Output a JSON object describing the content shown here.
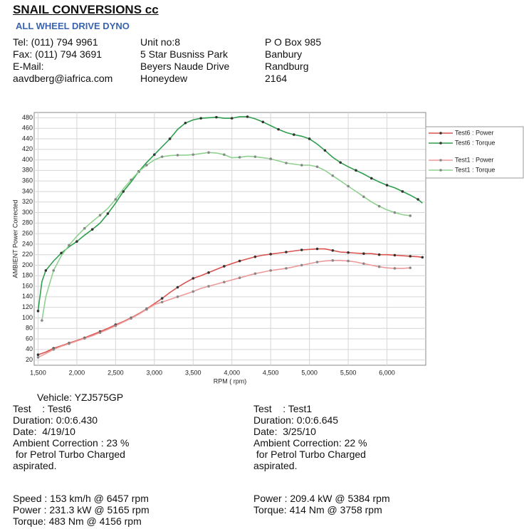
{
  "header": {
    "title": "SNAIL CONVERSIONS cc",
    "subtitle": "ALL WHEEL DRIVE DYNO",
    "contact": [
      [
        "Tel: (011) 794 9961",
        "Fax: (011) 794 3691",
        "E-Mail:",
        "aavdberg@iafrica.com"
      ],
      [
        "Unit no:8",
        "5 Star Busniss Park",
        "Beyers Naude Drive",
        "Honeydew"
      ],
      [
        "P O Box 985",
        "Banbury",
        "Randburg",
        "2164"
      ]
    ]
  },
  "chart_data": {
    "type": "line",
    "xlabel": "RPM ( rpm)",
    "ylabel": "AMBIENT Power Corrected",
    "xlim": [
      1450,
      6500
    ],
    "ylim": [
      10,
      490
    ],
    "grid": true,
    "xticks": [
      {
        "value": 1500,
        "label": "1,500"
      },
      {
        "value": 2000,
        "label": "2,000"
      },
      {
        "value": 2500,
        "label": "2,500"
      },
      {
        "value": 3000,
        "label": "3,000"
      },
      {
        "value": 3500,
        "label": "3,500"
      },
      {
        "value": 4000,
        "label": "4,000"
      },
      {
        "value": 4500,
        "label": "4,500"
      },
      {
        "value": 5000,
        "label": "5,000"
      },
      {
        "value": 5500,
        "label": "5,500"
      },
      {
        "value": 6000,
        "label": "6,000"
      }
    ],
    "yticks": [
      20,
      40,
      60,
      80,
      100,
      120,
      140,
      160,
      180,
      200,
      220,
      240,
      260,
      280,
      300,
      320,
      340,
      360,
      380,
      400,
      420,
      440,
      460,
      480
    ],
    "legend": "right",
    "series": [
      {
        "name": "Test6 : Power",
        "color": "#d9534f",
        "x": [
          1500,
          1600,
          1700,
          1800,
          1900,
          2000,
          2100,
          2200,
          2300,
          2400,
          2500,
          2600,
          2700,
          2800,
          2900,
          3000,
          3100,
          3200,
          3300,
          3400,
          3500,
          3600,
          3700,
          3800,
          3900,
          4000,
          4100,
          4200,
          4300,
          4400,
          4500,
          4600,
          4700,
          4800,
          4900,
          5000,
          5100,
          5200,
          5300,
          5400,
          5500,
          5600,
          5700,
          5800,
          5900,
          6000,
          6100,
          6200,
          6300,
          6400,
          6457
        ],
        "values": [
          30,
          35,
          42,
          47,
          52,
          57,
          62,
          68,
          74,
          80,
          87,
          93,
          100,
          108,
          117,
          127,
          137,
          148,
          158,
          167,
          175,
          180,
          186,
          192,
          198,
          203,
          208,
          212,
          216,
          219,
          221,
          223,
          225,
          227,
          229,
          230,
          231,
          231,
          228,
          225,
          224,
          223,
          222,
          222,
          220,
          220,
          219,
          218,
          217,
          216,
          215
        ]
      },
      {
        "name": "Test6 : Torque",
        "color": "#2e9e4f",
        "x": [
          1500,
          1550,
          1600,
          1700,
          1800,
          1900,
          2000,
          2100,
          2200,
          2300,
          2400,
          2500,
          2600,
          2700,
          2800,
          2900,
          3000,
          3100,
          3200,
          3300,
          3400,
          3500,
          3600,
          3700,
          3800,
          3900,
          4000,
          4100,
          4200,
          4300,
          4400,
          4500,
          4600,
          4700,
          4800,
          4900,
          5000,
          5100,
          5200,
          5300,
          5400,
          5500,
          5600,
          5700,
          5800,
          5900,
          6000,
          6100,
          6200,
          6300,
          6400,
          6457
        ],
        "values": [
          113,
          169,
          190,
          208,
          223,
          235,
          245,
          257,
          268,
          280,
          298,
          318,
          340,
          358,
          378,
          395,
          410,
          425,
          440,
          458,
          470,
          476,
          479,
          480,
          481,
          479,
          479,
          482,
          482,
          478,
          472,
          465,
          458,
          452,
          448,
          445,
          440,
          430,
          418,
          405,
          395,
          387,
          380,
          373,
          365,
          358,
          352,
          347,
          340,
          333,
          325,
          318
        ]
      },
      {
        "name": "Test1 : Power",
        "color": "#ec9a9a",
        "x": [
          1500,
          1600,
          1700,
          1800,
          1900,
          2000,
          2100,
          2200,
          2300,
          2400,
          2500,
          2600,
          2700,
          2800,
          2900,
          3000,
          3100,
          3200,
          3300,
          3400,
          3500,
          3600,
          3700,
          3800,
          3900,
          4000,
          4100,
          4200,
          4300,
          4400,
          4500,
          4600,
          4700,
          4800,
          4900,
          5000,
          5100,
          5200,
          5300,
          5400,
          5500,
          5600,
          5700,
          5800,
          5900,
          6000,
          6100,
          6200,
          6300
        ],
        "values": [
          25,
          32,
          40,
          46,
          51,
          56,
          61,
          66,
          72,
          78,
          85,
          92,
          99,
          107,
          116,
          125,
          130,
          135,
          140,
          145,
          150,
          156,
          160,
          164,
          168,
          172,
          176,
          180,
          184,
          187,
          190,
          192,
          194,
          197,
          200,
          203,
          206,
          208,
          209,
          209,
          208,
          206,
          203,
          200,
          197,
          195,
          194,
          194,
          195
        ]
      },
      {
        "name": "Test1 : Torque",
        "color": "#8fd18f",
        "x": [
          1550,
          1600,
          1700,
          1800,
          1900,
          2000,
          2100,
          2200,
          2300,
          2400,
          2500,
          2600,
          2700,
          2800,
          2900,
          3000,
          3100,
          3200,
          3300,
          3400,
          3500,
          3600,
          3700,
          3800,
          3900,
          4000,
          4100,
          4200,
          4300,
          4400,
          4500,
          4600,
          4700,
          4800,
          4900,
          5000,
          5100,
          5200,
          5300,
          5400,
          5500,
          5600,
          5700,
          5800,
          5900,
          6000,
          6100,
          6200,
          6300
        ],
        "values": [
          95,
          140,
          190,
          218,
          238,
          255,
          270,
          283,
          295,
          308,
          325,
          345,
          362,
          378,
          390,
          400,
          406,
          408,
          409,
          409,
          410,
          412,
          414,
          413,
          410,
          404,
          405,
          407,
          406,
          404,
          402,
          398,
          394,
          392,
          390,
          390,
          387,
          380,
          370,
          360,
          350,
          340,
          330,
          320,
          312,
          305,
          300,
          296,
          294
        ]
      }
    ]
  },
  "vehicle": "Vehicle: YZJ575GP",
  "tests": [
    [
      "Test    : Test6",
      "Duration: 0:0:6.430",
      "Date:  4/19/10",
      "Ambient Correction : 23 %",
      " for Petrol Turbo Charged",
      "aspirated."
    ],
    [
      "Test    : Test1",
      "Duration: 0:0:6.645",
      "Date:  3/25/10",
      "Ambient Correction: 22 %",
      " for Petrol Turbo Charged",
      "aspirated."
    ]
  ],
  "results": [
    [
      "Speed : 153 km/h @ 6457 rpm",
      "Power : 231.3 kW @ 5165 rpm",
      "Torque: 483 Nm @ 4156 rpm"
    ],
    [
      "Power : 209.4 kW @ 5384 rpm",
      "Torque: 414 Nm @ 3758 rpm"
    ]
  ]
}
